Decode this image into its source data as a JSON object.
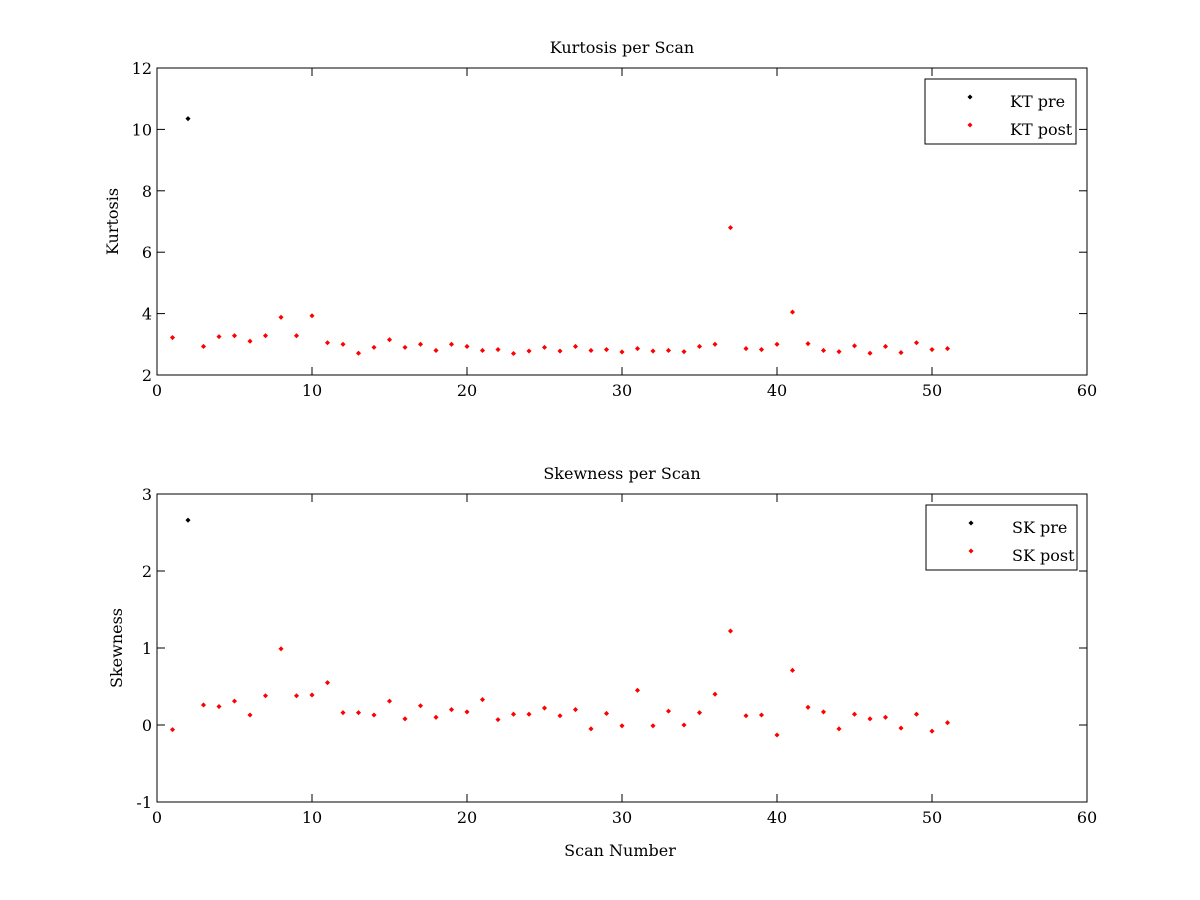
{
  "figure": {
    "background": "#ffffff"
  },
  "chart_data": [
    {
      "type": "scatter",
      "title": "Kurtosis per Scan",
      "xlabel": "",
      "ylabel": "Kurtosis",
      "xlim": [
        0,
        60
      ],
      "ylim": [
        2,
        12
      ],
      "xticks": [
        0,
        10,
        20,
        30,
        40,
        50,
        60
      ],
      "yticks": [
        2,
        4,
        6,
        8,
        10,
        12
      ],
      "grid": false,
      "legend_position": "top-right",
      "series": [
        {
          "name": "KT pre",
          "color": "#000000",
          "points": [
            [
              2,
              10.35
            ]
          ]
        },
        {
          "name": "KT post",
          "color": "#ff0000",
          "points": [
            [
              1,
              3.22
            ],
            [
              3,
              2.93
            ],
            [
              4,
              3.25
            ],
            [
              5,
              3.28
            ],
            [
              6,
              3.1
            ],
            [
              7,
              3.28
            ],
            [
              8,
              3.88
            ],
            [
              9,
              3.28
            ],
            [
              10,
              3.93
            ],
            [
              11,
              3.05
            ],
            [
              12,
              3.0
            ],
            [
              13,
              2.71
            ],
            [
              14,
              2.9
            ],
            [
              15,
              3.15
            ],
            [
              16,
              2.9
            ],
            [
              17,
              3.0
            ],
            [
              18,
              2.8
            ],
            [
              19,
              3.0
            ],
            [
              20,
              2.93
            ],
            [
              21,
              2.8
            ],
            [
              22,
              2.83
            ],
            [
              23,
              2.7
            ],
            [
              24,
              2.78
            ],
            [
              25,
              2.9
            ],
            [
              26,
              2.78
            ],
            [
              27,
              2.93
            ],
            [
              28,
              2.8
            ],
            [
              29,
              2.83
            ],
            [
              30,
              2.75
            ],
            [
              31,
              2.86
            ],
            [
              32,
              2.78
            ],
            [
              33,
              2.8
            ],
            [
              34,
              2.76
            ],
            [
              35,
              2.93
            ],
            [
              36,
              3.0
            ],
            [
              37,
              6.8
            ],
            [
              38,
              2.86
            ],
            [
              39,
              2.83
            ],
            [
              40,
              3.0
            ],
            [
              41,
              4.05
            ],
            [
              42,
              3.02
            ],
            [
              43,
              2.8
            ],
            [
              44,
              2.76
            ],
            [
              45,
              2.95
            ],
            [
              46,
              2.71
            ],
            [
              47,
              2.93
            ],
            [
              48,
              2.73
            ],
            [
              49,
              3.05
            ],
            [
              50,
              2.83
            ],
            [
              51,
              2.86
            ]
          ]
        }
      ]
    },
    {
      "type": "scatter",
      "title": "Skewness per Scan",
      "xlabel": "Scan Number",
      "ylabel": "Skewness",
      "xlim": [
        0,
        60
      ],
      "ylim": [
        -1,
        3
      ],
      "xticks": [
        0,
        10,
        20,
        30,
        40,
        50,
        60
      ],
      "yticks": [
        -1,
        0,
        1,
        2,
        3
      ],
      "grid": false,
      "legend_position": "top-right",
      "series": [
        {
          "name": "SK pre",
          "color": "#000000",
          "points": [
            [
              2,
              2.66
            ]
          ]
        },
        {
          "name": "SK post",
          "color": "#ff0000",
          "points": [
            [
              1,
              -0.06
            ],
            [
              3,
              0.26
            ],
            [
              4,
              0.24
            ],
            [
              5,
              0.31
            ],
            [
              6,
              0.13
            ],
            [
              7,
              0.38
            ],
            [
              8,
              0.99
            ],
            [
              9,
              0.38
            ],
            [
              10,
              0.39
            ],
            [
              11,
              0.55
            ],
            [
              12,
              0.16
            ],
            [
              13,
              0.16
            ],
            [
              14,
              0.13
            ],
            [
              15,
              0.31
            ],
            [
              16,
              0.08
            ],
            [
              17,
              0.25
            ],
            [
              18,
              0.1
            ],
            [
              19,
              0.2
            ],
            [
              20,
              0.17
            ],
            [
              21,
              0.33
            ],
            [
              22,
              0.07
            ],
            [
              23,
              0.14
            ],
            [
              24,
              0.14
            ],
            [
              25,
              0.22
            ],
            [
              26,
              0.12
            ],
            [
              27,
              0.2
            ],
            [
              28,
              -0.05
            ],
            [
              29,
              0.15
            ],
            [
              30,
              -0.01
            ],
            [
              31,
              0.45
            ],
            [
              32,
              -0.01
            ],
            [
              33,
              0.18
            ],
            [
              34,
              0.0
            ],
            [
              35,
              0.16
            ],
            [
              36,
              0.4
            ],
            [
              37,
              1.22
            ],
            [
              38,
              0.12
            ],
            [
              39,
              0.13
            ],
            [
              40,
              -0.13
            ],
            [
              41,
              0.71
            ],
            [
              42,
              0.23
            ],
            [
              43,
              0.17
            ],
            [
              44,
              -0.05
            ],
            [
              45,
              0.14
            ],
            [
              46,
              0.08
            ],
            [
              47,
              0.1
            ],
            [
              48,
              -0.04
            ],
            [
              49,
              0.14
            ],
            [
              50,
              -0.08
            ],
            [
              51,
              0.03
            ]
          ]
        }
      ]
    }
  ]
}
